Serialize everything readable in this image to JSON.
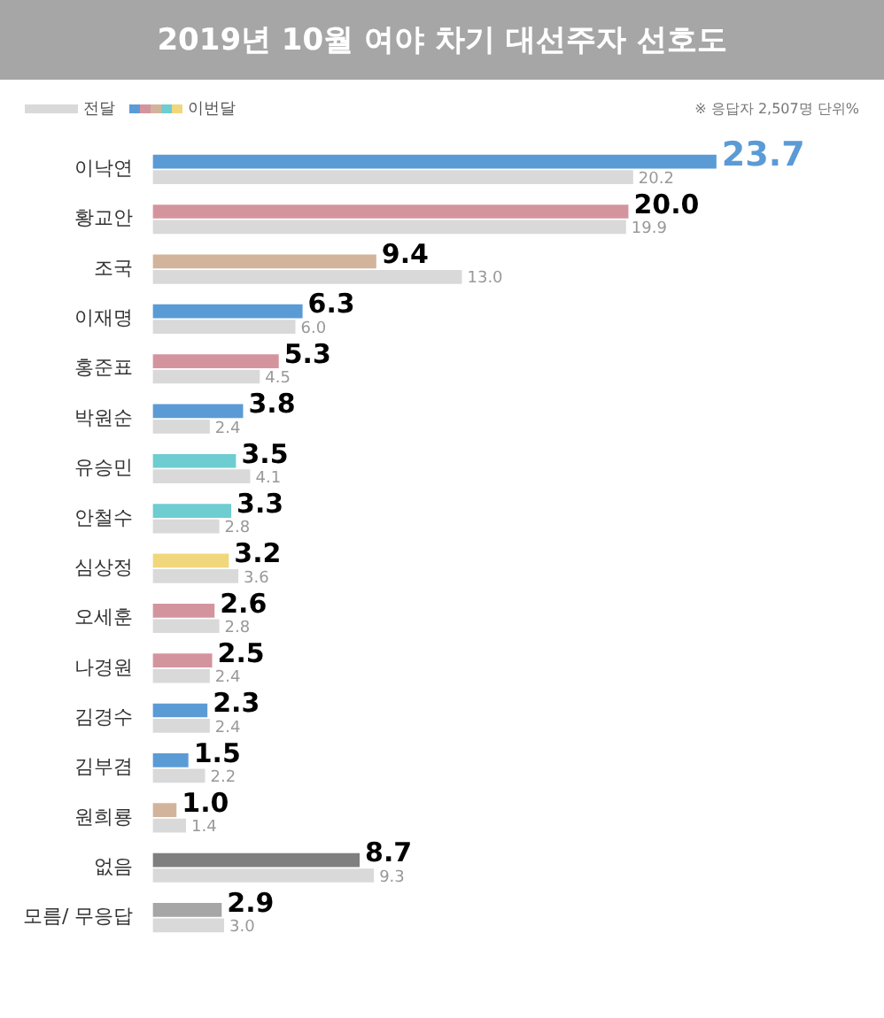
{
  "chart_data": {
    "type": "bar",
    "orientation": "horizontal",
    "title": "2019년 10월 여야 차기 대선주자 선호도",
    "annotations": [
      "※ 응답자 2,507명  단위%"
    ],
    "categories": [
      "이낙연",
      "황교안",
      "조국",
      "이재명",
      "홍준표",
      "박원순",
      "유승민",
      "안철수",
      "심상정",
      "오세훈",
      "나경원",
      "김경수",
      "김부겸",
      "원희룡",
      "없음",
      "모름/ 무응답"
    ],
    "series": [
      {
        "name": "이번달",
        "values": [
          23.7,
          20.0,
          9.4,
          6.3,
          5.3,
          3.8,
          3.5,
          3.3,
          3.2,
          2.6,
          2.5,
          2.3,
          1.5,
          1.0,
          8.7,
          2.9
        ],
        "value_labels": [
          "23.7",
          "20.0",
          "9.4",
          "6.3",
          "5.3",
          "3.8",
          "3.5",
          "3.3",
          "3.2",
          "2.6",
          "2.5",
          "2.3",
          "1.5",
          "1.0",
          "8.7",
          "2.9"
        ],
        "colors": [
          "#5b9bd5",
          "#d4949e",
          "#d2b49c",
          "#5b9bd5",
          "#d4949e",
          "#5b9bd5",
          "#6ecdd0",
          "#6ecdd0",
          "#f0d77c",
          "#d4949e",
          "#d4949e",
          "#5b9bd5",
          "#5b9bd5",
          "#d2b49c",
          "#7f7f7f",
          "#a6a6a6"
        ]
      },
      {
        "name": "전달",
        "color": "#d9d9d9",
        "value_labels": [
          "20.2",
          "19.9",
          "13.0",
          "6.0",
          "4.5",
          "2.4",
          "4.1",
          "2.8",
          "3.6",
          "2.8",
          "2.4",
          "2.4",
          "2.2",
          "1.4",
          "9.3",
          "3.0"
        ],
        "values": [
          20.2,
          19.9,
          13.0,
          6.0,
          4.5,
          2.4,
          4.1,
          2.8,
          3.6,
          2.8,
          2.4,
          2.4,
          2.2,
          1.4,
          9.3,
          3.0
        ]
      }
    ],
    "legend": "top left"
  }
}
